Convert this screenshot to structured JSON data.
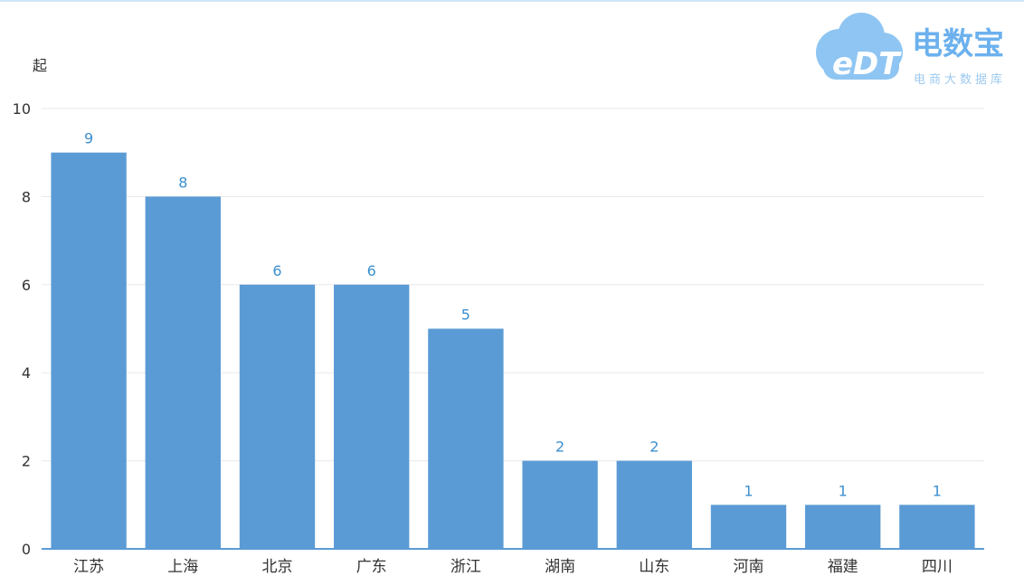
{
  "watermark": {
    "logo_text": "eDT",
    "brand_name": "电数宝",
    "brand_tagline": "电商大数据库",
    "color": "#6cb1ee"
  },
  "chart_data": {
    "type": "bar",
    "unit_label": "起",
    "categories": [
      "江苏",
      "上海",
      "北京",
      "广东",
      "浙江",
      "湖南",
      "山东",
      "河南",
      "福建",
      "四川"
    ],
    "values": [
      9,
      8,
      6,
      6,
      5,
      2,
      2,
      1,
      1,
      1
    ],
    "ylim": [
      0,
      10
    ],
    "yticks": [
      0,
      2,
      4,
      6,
      8,
      10
    ],
    "grid": true,
    "show_data_labels": true,
    "bar_color": "#5b9bd5",
    "label_color": "#3c8fcf"
  }
}
